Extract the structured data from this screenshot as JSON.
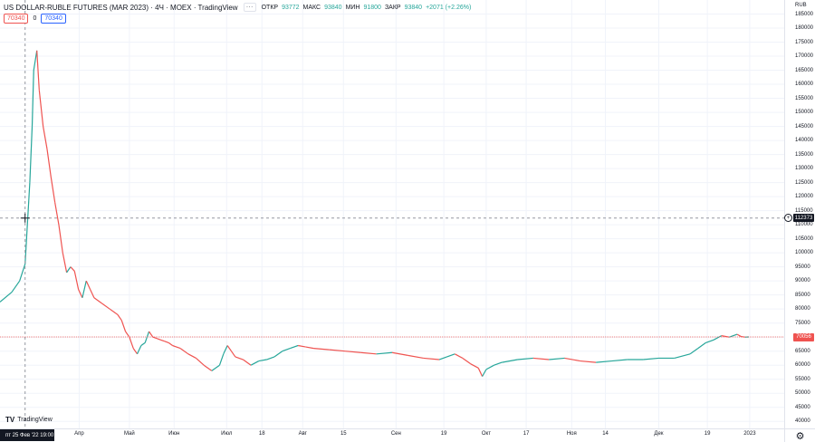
{
  "legend": {
    "symbol": "US DOLLAR-RUBLE FUTURES (MAR 2023) · 4Ч · MOEX · TradingView",
    "menu_icon": "dots-icon",
    "open_label": "ОТКР",
    "open_value": "93772",
    "high_label": "МАКС",
    "high_value": "93840",
    "low_label": "МИН",
    "low_value": "91800",
    "close_label": "ЗАКР",
    "close_value": "93840",
    "change": "+2071 (+2.26%)"
  },
  "price_boxes": {
    "sell": "70340",
    "spread": "0",
    "buy": "70340"
  },
  "currency": "RUB",
  "crosshair": {
    "date": "пт 25 Фев '22  19:00",
    "price": "112373"
  },
  "last_price": "70056",
  "branding": "TradingView",
  "settings_icon": "gear-icon",
  "collapse_icon": "chevron-icon",
  "colors": {
    "up": "#26a69a",
    "down": "#ef5350",
    "grid": "#f0f3fa",
    "crosshair": "#9598a1"
  },
  "chart_data": {
    "type": "line",
    "ylim": [
      37500,
      190000
    ],
    "y_ticks": [
      40000,
      45000,
      50000,
      55000,
      60000,
      65000,
      70000,
      75000,
      80000,
      85000,
      90000,
      95000,
      100000,
      105000,
      110000,
      115000,
      120000,
      125000,
      130000,
      135000,
      140000,
      145000,
      150000,
      155000,
      160000,
      165000,
      170000,
      175000,
      180000,
      185000
    ],
    "x_ticks": [
      "Апр",
      "Май",
      "Июн",
      "Июл",
      "18",
      "Авг",
      "15",
      "Сен",
      "19",
      "Окт",
      "17",
      "Ноя",
      "14",
      "Дек",
      "19",
      "2023"
    ],
    "x_tick_t": [
      0.101,
      0.165,
      0.222,
      0.289,
      0.334,
      0.386,
      0.438,
      0.505,
      0.566,
      0.62,
      0.671,
      0.729,
      0.772,
      0.84,
      0.902,
      0.956
    ],
    "series": [
      {
        "t": [
          0.0,
          0.015,
          0.025,
          0.032,
          0.038,
          0.041,
          0.043,
          0.047,
          0.05,
          0.055,
          0.06,
          0.065,
          0.07,
          0.075,
          0.08,
          0.085,
          0.09,
          0.095,
          0.1,
          0.105,
          0.11,
          0.115,
          0.12,
          0.13,
          0.14,
          0.15,
          0.155,
          0.16,
          0.165,
          0.17,
          0.175,
          0.18,
          0.185,
          0.19,
          0.195,
          0.2,
          0.205,
          0.21,
          0.215,
          0.22,
          0.23,
          0.24,
          0.25,
          0.26,
          0.27,
          0.28,
          0.285,
          0.29,
          0.295,
          0.3,
          0.31,
          0.32,
          0.33,
          0.34,
          0.35,
          0.36,
          0.37,
          0.38,
          0.39,
          0.4,
          0.42,
          0.44,
          0.46,
          0.48,
          0.5,
          0.52,
          0.54,
          0.56,
          0.57,
          0.58,
          0.59,
          0.6,
          0.61,
          0.615,
          0.62,
          0.63,
          0.64,
          0.66,
          0.68,
          0.7,
          0.72,
          0.74,
          0.76,
          0.78,
          0.8,
          0.82,
          0.84,
          0.86,
          0.88,
          0.89,
          0.9,
          0.91,
          0.92,
          0.93,
          0.94,
          0.945,
          0.95,
          0.955
        ],
        "values": [
          82500,
          86000,
          90000,
          96000,
          125000,
          145000,
          165000,
          172000,
          158000,
          145000,
          137000,
          127000,
          118000,
          110000,
          100000,
          93000,
          95000,
          93500,
          87000,
          84000,
          90000,
          87000,
          84000,
          82000,
          80000,
          78000,
          76000,
          72000,
          70000,
          66000,
          64000,
          67000,
          68000,
          72000,
          70000,
          69500,
          69000,
          68500,
          68000,
          67000,
          66000,
          64000,
          62500,
          60000,
          58000,
          60000,
          64000,
          67000,
          65000,
          63000,
          62000,
          60000,
          61500,
          62000,
          63000,
          65000,
          66000,
          67000,
          66500,
          66000,
          65500,
          65000,
          64500,
          64000,
          64500,
          63500,
          62500,
          62000,
          63000,
          64000,
          62500,
          60500,
          59000,
          56000,
          58500,
          60000,
          61000,
          62000,
          62500,
          62000,
          62500,
          61500,
          61000,
          61500,
          62000,
          62000,
          62500,
          62500,
          64000,
          66000,
          68000,
          69000,
          70500,
          70000,
          71000,
          70200,
          70000,
          70056
        ]
      }
    ]
  }
}
